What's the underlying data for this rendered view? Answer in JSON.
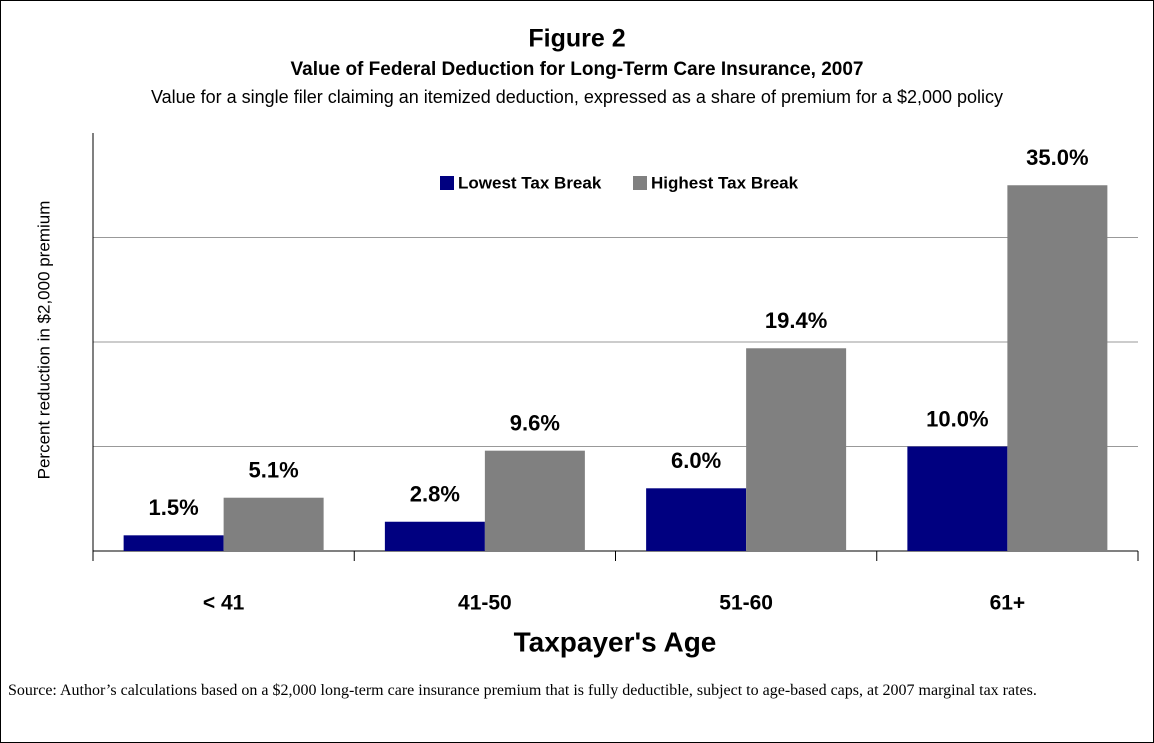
{
  "chart_data": {
    "type": "bar",
    "title": "Figure 2",
    "subtitle": "Value of Federal Deduction for Long-Term Care Insurance, 2007",
    "description": "Value for a single filer claiming an itemized deduction, expressed as a share of premium for a $2,000 policy",
    "y_label": "Percent reduction in $2,000 premium",
    "x_label": "Taxpayer's Age",
    "categories": [
      "< 41",
      "41-50",
      "51-60",
      "61+"
    ],
    "series": [
      {
        "name": "Lowest Tax Break",
        "color": "#000080",
        "values": [
          1.5,
          2.8,
          6.0,
          10.0
        ],
        "value_labels": [
          "1.5%",
          "2.8%",
          "6.0%",
          "10.0%"
        ]
      },
      {
        "name": "Highest Tax Break",
        "color": "#808080",
        "values": [
          5.1,
          9.6,
          19.4,
          35.0
        ],
        "value_labels": [
          "5.1%",
          "9.6%",
          "19.4%",
          "35.0%"
        ]
      }
    ],
    "ylim": [
      0,
      40
    ],
    "yticks": [
      0,
      10,
      20,
      30,
      40
    ],
    "grid": true,
    "legend": "top",
    "source": "Source: Author’s calculations based on a $2,000 long-term care insurance premium that is fully deductible, subject to age-based caps, at 2007 marginal tax rates."
  }
}
